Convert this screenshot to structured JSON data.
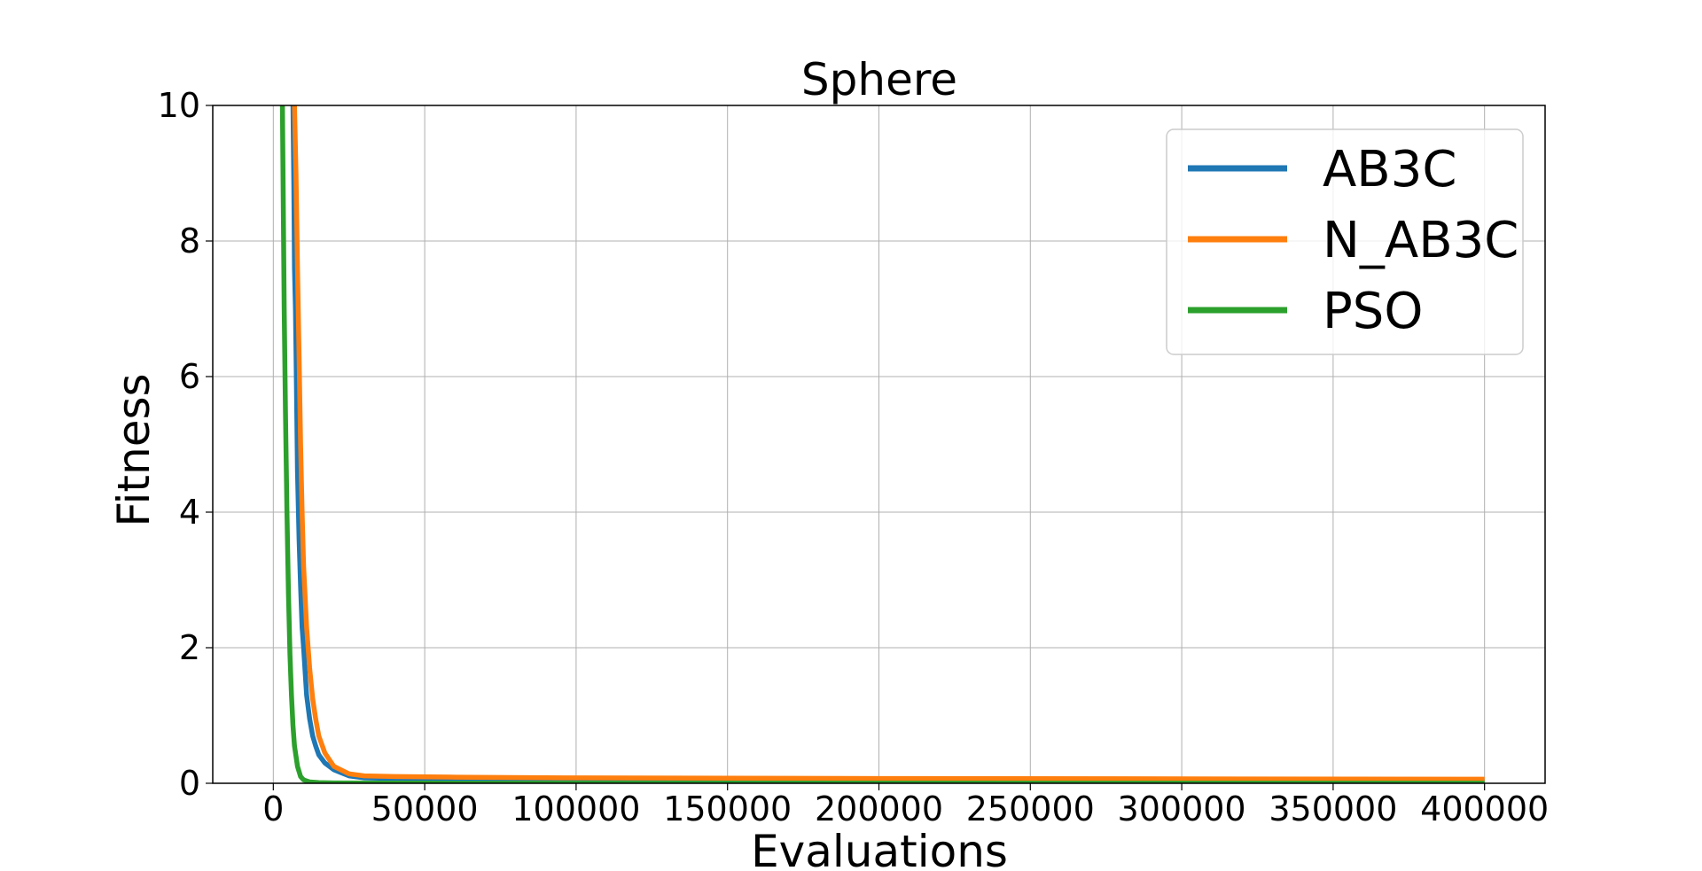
{
  "chart_data": {
    "type": "line",
    "title": "Sphere",
    "xlabel": "Evaluations",
    "ylabel": "Fitness",
    "xlim": [
      -20000,
      420000
    ],
    "ylim": [
      0,
      10
    ],
    "x_ticks": [
      0,
      50000,
      100000,
      150000,
      200000,
      250000,
      300000,
      350000,
      400000
    ],
    "x_tick_labels": [
      "0",
      "50000",
      "100000",
      "150000",
      "200000",
      "250000",
      "300000",
      "350000",
      "400000"
    ],
    "y_ticks": [
      0,
      2,
      4,
      6,
      8,
      10
    ],
    "y_tick_labels": [
      "0",
      "2",
      "4",
      "6",
      "8",
      "10"
    ],
    "grid": true,
    "legend_position": "top-right",
    "series": [
      {
        "name": "AB3C",
        "color": "#1f77b4",
        "x": [
          6500,
          6800,
          7000,
          7300,
          7600,
          8000,
          8500,
          9000,
          9500,
          10000,
          11000,
          12000,
          13000,
          14000,
          15000,
          17000,
          20000,
          25000,
          30000,
          40000,
          60000,
          100000,
          150000,
          200000,
          300000,
          400000
        ],
        "y": [
          10,
          8.8,
          7.6,
          7.0,
          6.0,
          4.6,
          3.6,
          2.9,
          2.3,
          2.0,
          1.3,
          0.95,
          0.7,
          0.55,
          0.42,
          0.3,
          0.2,
          0.11,
          0.08,
          0.07,
          0.06,
          0.05,
          0.04,
          0.035,
          0.03,
          0.03
        ]
      },
      {
        "name": "N_AB3C",
        "color": "#ff7f0e",
        "x": [
          7000,
          7500,
          8000,
          8500,
          9000,
          9500,
          10000,
          11000,
          12000,
          13000,
          14000,
          15000,
          17000,
          20000,
          25000,
          30000,
          40000,
          60000,
          100000,
          150000,
          200000,
          300000,
          400000
        ],
        "y": [
          10,
          9.0,
          7.6,
          6.3,
          5.0,
          4.0,
          3.2,
          2.3,
          1.7,
          1.25,
          0.95,
          0.7,
          0.45,
          0.25,
          0.14,
          0.11,
          0.1,
          0.09,
          0.08,
          0.075,
          0.07,
          0.065,
          0.06
        ]
      },
      {
        "name": "PSO",
        "color": "#2ca02c",
        "x": [
          3000,
          3300,
          3600,
          4000,
          4500,
          5000,
          5500,
          6000,
          6500,
          7000,
          8000,
          9000,
          10000,
          12000,
          15000,
          20000,
          30000,
          50000,
          100000,
          200000,
          300000,
          400000
        ],
        "y": [
          10,
          8.5,
          7.0,
          5.5,
          4.0,
          2.8,
          1.9,
          1.3,
          0.85,
          0.55,
          0.25,
          0.1,
          0.05,
          0.02,
          0.01,
          0.005,
          0.003,
          0.002,
          0.001,
          0.001,
          0.001,
          0.001
        ]
      }
    ]
  }
}
